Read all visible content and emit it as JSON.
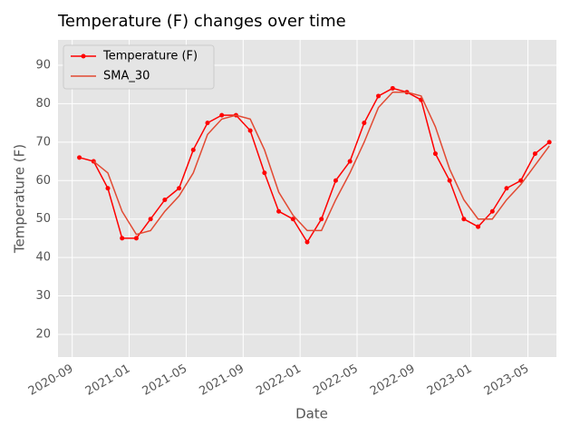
{
  "chart_data": {
    "type": "line",
    "title": "Temperature (F) changes over time",
    "x_label": "Date",
    "y_label": "Temperature (F)",
    "x": [
      "2020-09",
      "2020-10",
      "2020-11",
      "2020-12",
      "2021-01",
      "2021-02",
      "2021-03",
      "2021-04",
      "2021-05",
      "2021-06",
      "2021-07",
      "2021-08",
      "2021-09",
      "2021-10",
      "2021-11",
      "2021-12",
      "2022-01",
      "2022-02",
      "2022-03",
      "2022-04",
      "2022-05",
      "2022-06",
      "2022-07",
      "2022-08",
      "2022-09",
      "2022-10",
      "2022-11",
      "2022-12",
      "2023-01",
      "2023-02",
      "2023-03",
      "2023-04",
      "2023-05",
      "2023-06"
    ],
    "series": [
      {
        "name": "Temperature (F)",
        "color": "#ff0000",
        "marker": true,
        "values": [
          66,
          65,
          58,
          45,
          45,
          50,
          55,
          58,
          68,
          75,
          77,
          77,
          73,
          62,
          52,
          50,
          44,
          50,
          60,
          65,
          75,
          82,
          84,
          83,
          81,
          67,
          60,
          50,
          48,
          52,
          58,
          60,
          67,
          70
        ]
      },
      {
        "name": "SMA_30",
        "color": "#e24a33",
        "marker": false,
        "values": [
          null,
          65,
          62,
          52,
          46,
          47,
          52,
          56,
          62,
          72,
          76,
          77,
          76,
          68,
          57,
          51,
          47,
          47,
          55,
          62,
          70,
          79,
          83,
          83,
          82,
          74,
          63,
          55,
          50,
          50,
          55,
          59,
          64,
          69
        ]
      }
    ],
    "xlim": [
      "2020-08",
      "2023-07"
    ],
    "xticks": [
      "2020-09",
      "2021-01",
      "2021-05",
      "2021-09",
      "2022-01",
      "2022-05",
      "2022-09",
      "2023-01",
      "2023-05"
    ],
    "ylim": [
      14.1,
      96.6
    ],
    "yticks": [
      20,
      30,
      40,
      50,
      60,
      70,
      80,
      90
    ],
    "grid": true,
    "legend": "upper-left"
  }
}
